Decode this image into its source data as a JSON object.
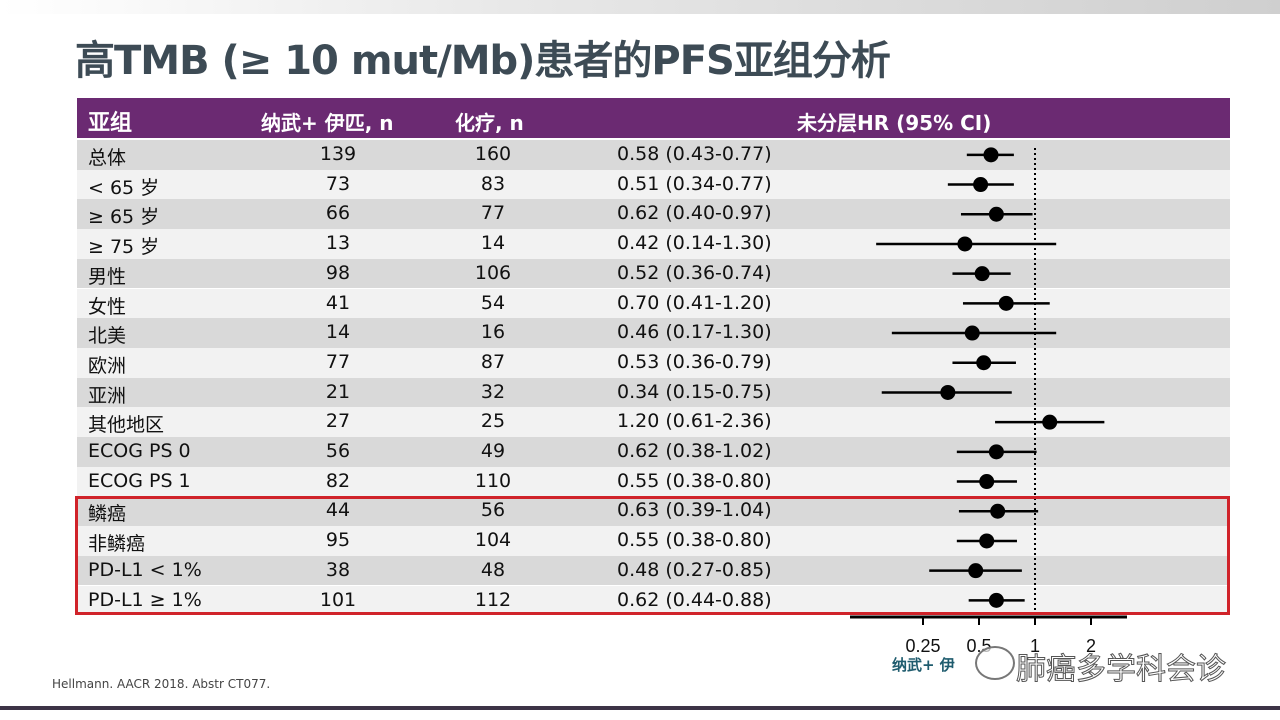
{
  "title": "高TMB (≥ 10 mut/Mb)患者的PFS亚组分析",
  "header": {
    "subgroup": "亚组",
    "arm1": "纳武+ 伊匹, n",
    "arm2": "化疗, n",
    "hr": "未分层HR (95% CI)"
  },
  "footer": "Hellmann. AACR 2018. Abstr CT077.",
  "favor_label": "纳武+ 伊",
  "watermark": "肺癌多学科会诊",
  "colors": {
    "header": "#6b2a72",
    "row_dark": "#d9d9d9",
    "row_light": "#f2f2f2",
    "highlight_box": "#d0232a",
    "title": "#3d4b55"
  },
  "chart_data": {
    "type": "forest",
    "x_scale": "log2",
    "x_ticks": [
      "0.25",
      "0.5",
      "1",
      "2"
    ],
    "x_tick_values": [
      0.25,
      0.5,
      1,
      2
    ],
    "reference_line": 1,
    "highlighted_rows": [
      12,
      13,
      14,
      15
    ],
    "rows": [
      {
        "label": "总体",
        "n1": "139",
        "n2": "160",
        "text": "0.58 (0.43-0.77)",
        "hr": 0.58,
        "lo": 0.43,
        "hi": 0.77
      },
      {
        "label": "< 65 岁",
        "n1": "73",
        "n2": "83",
        "text": "0.51 (0.34-0.77)",
        "hr": 0.51,
        "lo": 0.34,
        "hi": 0.77
      },
      {
        "label": "≥ 65 岁",
        "n1": "66",
        "n2": "77",
        "text": "0.62 (0.40-0.97)",
        "hr": 0.62,
        "lo": 0.4,
        "hi": 0.97
      },
      {
        "label": "≥ 75 岁",
        "n1": "13",
        "n2": "14",
        "text": "0.42 (0.14-1.30)",
        "hr": 0.42,
        "lo": 0.14,
        "hi": 1.3
      },
      {
        "label": "男性",
        "n1": "98",
        "n2": "106",
        "text": "0.52 (0.36-0.74)",
        "hr": 0.52,
        "lo": 0.36,
        "hi": 0.74
      },
      {
        "label": "女性",
        "n1": "41",
        "n2": "54",
        "text": "0.70 (0.41-1.20)",
        "hr": 0.7,
        "lo": 0.41,
        "hi": 1.2
      },
      {
        "label": "北美",
        "n1": "14",
        "n2": "16",
        "text": "0.46 (0.17-1.30)",
        "hr": 0.46,
        "lo": 0.17,
        "hi": 1.3
      },
      {
        "label": "欧洲",
        "n1": "77",
        "n2": "87",
        "text": "0.53 (0.36-0.79)",
        "hr": 0.53,
        "lo": 0.36,
        "hi": 0.79
      },
      {
        "label": "亚洲",
        "n1": "21",
        "n2": "32",
        "text": "0.34 (0.15-0.75)",
        "hr": 0.34,
        "lo": 0.15,
        "hi": 0.75
      },
      {
        "label": "其他地区",
        "n1": "27",
        "n2": "25",
        "text": "1.20 (0.61-2.36)",
        "hr": 1.2,
        "lo": 0.61,
        "hi": 2.36
      },
      {
        "label": "ECOG PS 0",
        "n1": "56",
        "n2": "49",
        "text": "0.62 (0.38-1.02)",
        "hr": 0.62,
        "lo": 0.38,
        "hi": 1.02
      },
      {
        "label": "ECOG PS 1",
        "n1": "82",
        "n2": "110",
        "text": "0.55 (0.38-0.80)",
        "hr": 0.55,
        "lo": 0.38,
        "hi": 0.8
      },
      {
        "label": "鳞癌",
        "n1": "44",
        "n2": "56",
        "text": "0.63 (0.39-1.04)",
        "hr": 0.63,
        "lo": 0.39,
        "hi": 1.04
      },
      {
        "label": "非鳞癌",
        "n1": "95",
        "n2": "104",
        "text": "0.55 (0.38-0.80)",
        "hr": 0.55,
        "lo": 0.38,
        "hi": 0.8
      },
      {
        "label": "PD-L1 < 1%",
        "n1": "38",
        "n2": "48",
        "text": "0.48 (0.27-0.85)",
        "hr": 0.48,
        "lo": 0.27,
        "hi": 0.85
      },
      {
        "label": "PD-L1 ≥ 1%",
        "n1": "101",
        "n2": "112",
        "text": "0.62 (0.44-0.88)",
        "hr": 0.62,
        "lo": 0.44,
        "hi": 0.88
      }
    ]
  }
}
